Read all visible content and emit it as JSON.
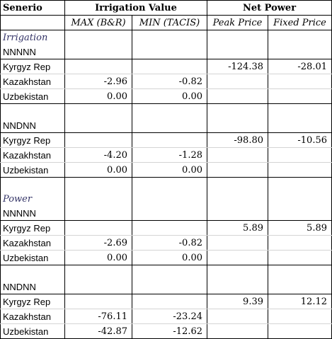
{
  "header": {
    "scenario_label": "Senerio",
    "irrigation_value": "Irrigation Value",
    "net_power": "Net Power",
    "col_max": "MAX (B&R)",
    "col_min": "MIN (TACIS)",
    "col_peak": "Peak Price",
    "col_fixed": "Fixed Price"
  },
  "sections": [
    {
      "title": "Irrigation",
      "scenarios": [
        {
          "code": "NNNNN",
          "rows": [
            {
              "country": "Kyrgyz Rep",
              "max": "",
              "min": "",
              "peak": "-124.38",
              "fixed": "-28.01"
            },
            {
              "country": "Kazakhstan",
              "max": "-2.96",
              "min": "-0.82",
              "peak": "",
              "fixed": ""
            },
            {
              "country": "Uzbekistan",
              "max": "0.00",
              "min": "0.00",
              "peak": "",
              "fixed": ""
            }
          ]
        },
        {
          "code": "NNDNN",
          "rows": [
            {
              "country": "Kyrgyz Rep",
              "max": "",
              "min": "",
              "peak": "-98.80",
              "fixed": "-10.56"
            },
            {
              "country": "Kazakhstan",
              "max": "-4.20",
              "min": "-1.28",
              "peak": "",
              "fixed": ""
            },
            {
              "country": "Uzbekistan",
              "max": "0.00",
              "min": "0.00",
              "peak": "",
              "fixed": ""
            }
          ]
        }
      ]
    },
    {
      "title": "Power",
      "scenarios": [
        {
          "code": "NNNNN",
          "rows": [
            {
              "country": "Kyrgyz Rep",
              "max": "",
              "min": "",
              "peak": "5.89",
              "fixed": "5.89"
            },
            {
              "country": "Kazakhstan",
              "max": "-2.69",
              "min": "-0.82",
              "peak": "",
              "fixed": ""
            },
            {
              "country": "Uzbekistan",
              "max": "0.00",
              "min": "0.00",
              "peak": "",
              "fixed": ""
            }
          ]
        },
        {
          "code": "NNDNN",
          "rows": [
            {
              "country": "Kyrgyz Rep",
              "max": "",
              "min": "",
              "peak": "9.39",
              "fixed": "12.12"
            },
            {
              "country": "Kazakhstan",
              "max": "-76.11",
              "min": "-23.24",
              "peak": "",
              "fixed": ""
            },
            {
              "country": "Uzbekistan",
              "max": "-42.87",
              "min": "-12.62",
              "peak": "",
              "fixed": ""
            }
          ]
        }
      ]
    }
  ]
}
